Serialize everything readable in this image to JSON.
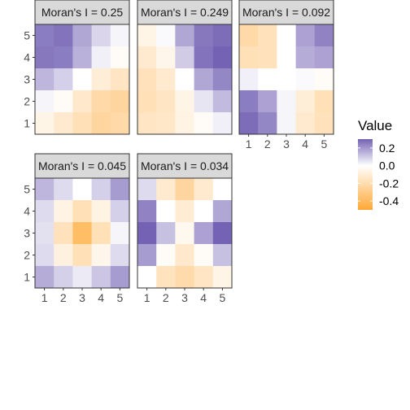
{
  "chart_data": {
    "type": "heatmap",
    "legend": {
      "title": "Value",
      "ticks": [
        "0.2",
        "0.0",
        "-0.2",
        "-0.4"
      ],
      "tick_values": [
        0.2,
        0.0,
        -0.2,
        -0.4
      ],
      "limits": [
        -0.5,
        0.3
      ],
      "placement": "right"
    },
    "colors": {
      "low": "#ffa836",
      "mid": "#ffffff",
      "high": "#7463b4"
    },
    "x_ticks": [
      "1",
      "2",
      "3",
      "4",
      "5"
    ],
    "y_ticks": [
      "1",
      "2",
      "3",
      "4",
      "5"
    ],
    "panels": [
      {
        "strip": "Moran's I = 0.25",
        "values": [
          [
            0.25,
            0.27,
            0.17,
            0.08,
            0.02
          ],
          [
            0.26,
            0.25,
            0.15,
            0.03,
            -0.02
          ],
          [
            0.14,
            0.09,
            0.0,
            -0.1,
            -0.15
          ],
          [
            0.02,
            -0.02,
            -0.13,
            -0.22,
            -0.24
          ],
          [
            -0.06,
            -0.12,
            -0.18,
            -0.24,
            -0.22
          ]
        ]
      },
      {
        "strip": "Moran's I = 0.249",
        "values": [
          [
            -0.06,
            0.01,
            0.17,
            0.26,
            0.28
          ],
          [
            -0.12,
            -0.05,
            0.1,
            0.27,
            0.32
          ],
          [
            -0.17,
            -0.12,
            0.0,
            0.17,
            0.23
          ],
          [
            -0.18,
            -0.15,
            -0.06,
            0.05,
            0.13
          ],
          [
            -0.15,
            -0.14,
            -0.07,
            -0.02,
            0.03
          ]
        ]
      },
      {
        "strip": "Moran's I = 0.092",
        "values": [
          [
            -0.22,
            -0.17,
            0.0,
            0.18,
            0.24
          ],
          [
            -0.18,
            -0.17,
            0.0,
            0.16,
            0.18
          ],
          [
            0.03,
            0.0,
            0.0,
            0.01,
            -0.02
          ],
          [
            0.25,
            0.18,
            0.02,
            -0.1,
            -0.18
          ],
          [
            0.28,
            0.23,
            0.02,
            -0.12,
            -0.17
          ]
        ]
      },
      {
        "strip": "Moran's I = 0.045",
        "values": [
          [
            0.14,
            0.07,
            0.0,
            0.09,
            0.19
          ],
          [
            0.07,
            -0.07,
            -0.18,
            -0.07,
            0.09
          ],
          [
            0.06,
            -0.17,
            -0.38,
            -0.18,
            0.02
          ],
          [
            0.07,
            -0.08,
            -0.18,
            -0.05,
            0.07
          ],
          [
            0.16,
            0.09,
            0.04,
            0.11,
            0.19
          ]
        ]
      },
      {
        "strip": "Moran's I = 0.034",
        "values": [
          [
            0.07,
            -0.12,
            -0.24,
            -0.12,
            0.0
          ],
          [
            0.24,
            0.0,
            -0.11,
            0.0,
            0.17
          ],
          [
            0.35,
            0.12,
            -0.04,
            0.18,
            0.33
          ],
          [
            0.19,
            -0.02,
            -0.13,
            -0.02,
            0.12
          ],
          [
            0.0,
            -0.16,
            -0.21,
            -0.15,
            -0.06
          ]
        ]
      }
    ]
  }
}
